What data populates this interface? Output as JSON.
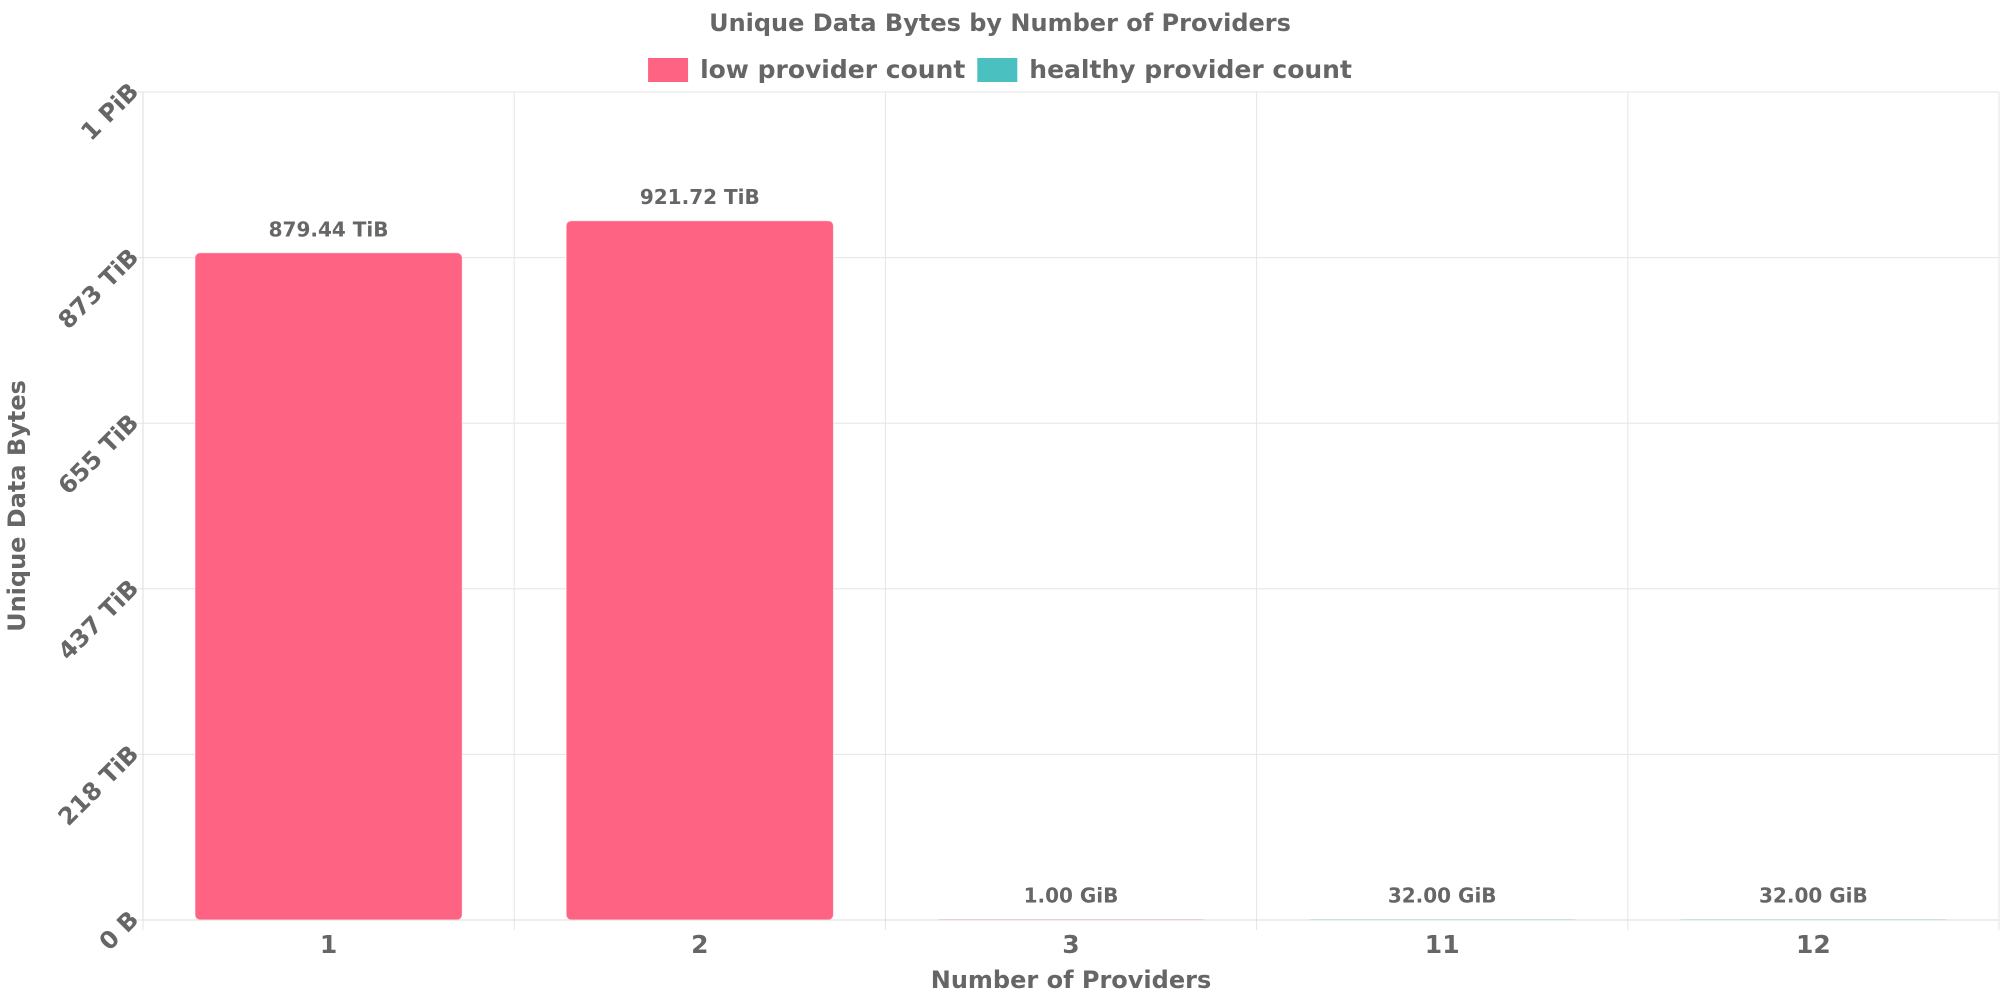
{
  "chart_data": {
    "type": "bar",
    "title": "Unique Data Bytes by Number of Providers",
    "x_label": "Number of Providers",
    "y_label": "Unique Data Bytes",
    "categories": [
      "1",
      "2",
      "3",
      "11",
      "12"
    ],
    "series": [
      {
        "name": "low provider count",
        "color": "#ff6384",
        "values": [
          879.44,
          921.72,
          0.0009765625,
          null,
          null
        ],
        "value_labels": [
          "879.44 TiB",
          "921.72 TiB",
          "1.00 GiB",
          null,
          null
        ]
      },
      {
        "name": "healthy provider count",
        "color": "#4bc0c0",
        "values": [
          null,
          null,
          null,
          0.03125,
          0.03125
        ],
        "value_labels": [
          null,
          null,
          null,
          "32.00 GiB",
          "32.00 GiB"
        ]
      }
    ],
    "ylim": [
      0,
      1091.39
    ],
    "yticks": [
      {
        "value": 0,
        "label": "0 B"
      },
      {
        "value": 218.28,
        "label": "218 TiB"
      },
      {
        "value": 436.56,
        "label": "437 TiB"
      },
      {
        "value": 654.84,
        "label": "655 TiB"
      },
      {
        "value": 873.12,
        "label": "873 TiB"
      },
      {
        "value": 1091.39,
        "label": "1 PiB"
      }
    ],
    "grid": true
  }
}
